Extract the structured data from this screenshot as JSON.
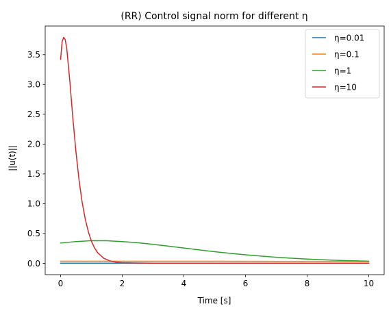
{
  "chart_data": {
    "type": "line",
    "title": "(RR) Control signal norm for different η",
    "xlabel": "Time [s]",
    "ylabel": "||u(t)||",
    "xlim": [
      -0.5,
      10.5
    ],
    "ylim": [
      -0.19,
      3.98
    ],
    "xticks": [
      0,
      2,
      4,
      6,
      8,
      10
    ],
    "xtick_labels": [
      "0",
      "2",
      "4",
      "6",
      "8",
      "10"
    ],
    "yticks": [
      0.0,
      0.5,
      1.0,
      1.5,
      2.0,
      2.5,
      3.0,
      3.5
    ],
    "ytick_labels": [
      "0.0",
      "0.5",
      "1.0",
      "1.5",
      "2.0",
      "2.5",
      "3.0",
      "3.5"
    ],
    "grid": false,
    "legend_position": "top-right",
    "series": [
      {
        "name": "η=0.01",
        "color": "#1f77b4",
        "x": [
          0,
          1,
          2,
          3,
          4,
          5,
          6,
          7,
          8,
          9,
          10
        ],
        "y": [
          0.003,
          0.003,
          0.003,
          0.003,
          0.003,
          0.003,
          0.003,
          0.003,
          0.003,
          0.003,
          0.003
        ]
      },
      {
        "name": "η=0.1",
        "color": "#ff7f0e",
        "x": [
          0,
          1,
          2,
          3,
          4,
          5,
          6,
          7,
          8,
          9,
          10
        ],
        "y": [
          0.035,
          0.036,
          0.036,
          0.036,
          0.035,
          0.035,
          0.034,
          0.033,
          0.033,
          0.032,
          0.031
        ]
      },
      {
        "name": "η=1",
        "color": "#2ca02c",
        "x": [
          0,
          0.5,
          1,
          1.5,
          2,
          2.5,
          3,
          3.5,
          4,
          4.5,
          5,
          5.5,
          6,
          6.5,
          7,
          7.5,
          8,
          8.5,
          9,
          9.5,
          10
        ],
        "y": [
          0.34,
          0.365,
          0.38,
          0.378,
          0.365,
          0.345,
          0.318,
          0.288,
          0.256,
          0.225,
          0.195,
          0.168,
          0.143,
          0.121,
          0.102,
          0.086,
          0.072,
          0.06,
          0.05,
          0.042,
          0.035
        ]
      },
      {
        "name": "η=10",
        "color": "#d62728",
        "x": [
          0,
          0.05,
          0.1,
          0.15,
          0.2,
          0.3,
          0.4,
          0.5,
          0.6,
          0.7,
          0.8,
          0.9,
          1.0,
          1.1,
          1.2,
          1.4,
          1.6,
          1.8,
          2.0,
          2.5,
          3,
          4,
          5,
          6,
          7,
          8,
          9,
          10
        ],
        "y": [
          3.42,
          3.72,
          3.79,
          3.75,
          3.6,
          3.05,
          2.42,
          1.86,
          1.39,
          1.02,
          0.74,
          0.53,
          0.37,
          0.26,
          0.18,
          0.085,
          0.04,
          0.02,
          0.01,
          0.005,
          0.003,
          0.002,
          0.002,
          0.002,
          0.002,
          0.002,
          0.002,
          0.002
        ]
      }
    ]
  }
}
